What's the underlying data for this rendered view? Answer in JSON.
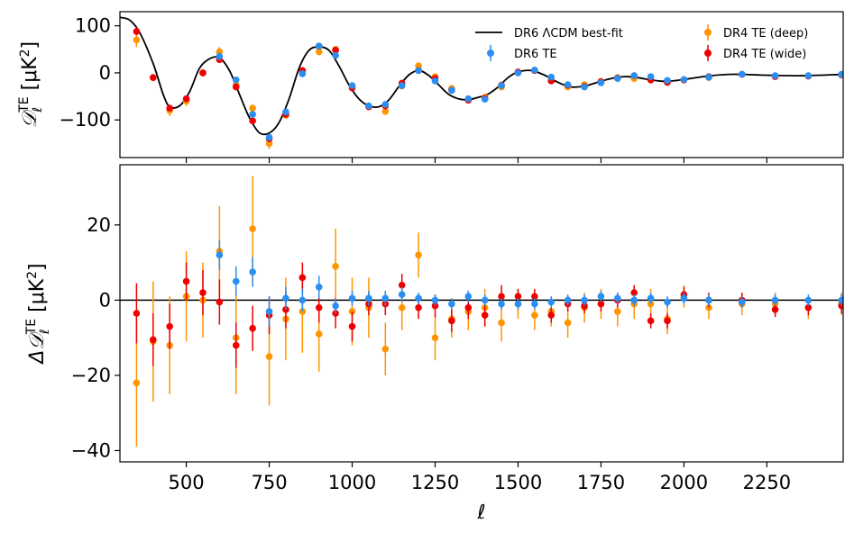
{
  "chart_data": [
    {
      "type": "scatter",
      "panel": "top",
      "ylabel": "D_ℓ^TE [μK²]",
      "ylabel_main": "𝒟",
      "ylabel_sub": "ℓ",
      "ylabel_sup": "TE",
      "ylabel_unit": " [μK",
      "ylabel_unit_sup": "2",
      "ylabel_close": "]",
      "xlim": [
        300,
        2480
      ],
      "ylim": [
        -180,
        130
      ],
      "yticks": [
        100,
        0,
        -100
      ],
      "ytick_labels": [
        "100",
        "0",
        "−100"
      ],
      "legend": {
        "position": "top-right",
        "entries": [
          {
            "label": "DR6 ΛCDM best-fit",
            "kind": "line",
            "color": "#000000"
          },
          {
            "label": "DR4 TE (deep)",
            "kind": "marker",
            "color": "#ff9500"
          },
          {
            "label": "DR6 TE",
            "kind": "marker",
            "color": "#2a8ff0"
          },
          {
            "label": "DR4 TE (wide)",
            "kind": "marker",
            "color": "#ee0000"
          }
        ]
      },
      "model_curve": {
        "name": "DR6 ΛCDM best-fit",
        "color": "#000000",
        "x": [
          300,
          330,
          360,
          400,
          430,
          450,
          480,
          510,
          540,
          570,
          600,
          630,
          660,
          690,
          720,
          750,
          780,
          810,
          840,
          870,
          900,
          930,
          960,
          990,
          1020,
          1050,
          1080,
          1110,
          1140,
          1170,
          1200,
          1230,
          1260,
          1290,
          1320,
          1350,
          1380,
          1410,
          1440,
          1470,
          1500,
          1540,
          1580,
          1620,
          1660,
          1700,
          1740,
          1780,
          1820,
          1860,
          1900,
          1940,
          1980,
          2020,
          2080,
          2150,
          2250,
          2350,
          2450,
          2480
        ],
        "y": [
          118,
          112,
          85,
          20,
          -45,
          -72,
          -70,
          -40,
          10,
          30,
          32,
          5,
          -45,
          -95,
          -127,
          -128,
          -105,
          -55,
          10,
          48,
          55,
          48,
          15,
          -25,
          -55,
          -70,
          -72,
          -58,
          -30,
          -5,
          5,
          -5,
          -25,
          -45,
          -55,
          -57,
          -52,
          -45,
          -30,
          -10,
          2,
          5,
          -5,
          -20,
          -30,
          -28,
          -20,
          -12,
          -8,
          -10,
          -15,
          -18,
          -16,
          -12,
          -6,
          -3,
          -5,
          -6,
          -4,
          -3
        ]
      },
      "series": [
        {
          "name": "DR4 TE (deep)",
          "color": "#ff9500",
          "x": [
            350,
            400,
            450,
            500,
            550,
            600,
            650,
            700,
            750,
            800,
            850,
            900,
            950,
            1000,
            1050,
            1100,
            1150,
            1200,
            1250,
            1300,
            1350,
            1400,
            1450,
            1500,
            1550,
            1600,
            1650,
            1700,
            1750,
            1800,
            1850,
            1900,
            1950,
            2000,
            2075,
            2175,
            2275,
            2375,
            2475
          ],
          "y": [
            70,
            -10,
            -80,
            -60,
            0,
            45,
            -25,
            -75,
            -150,
            -90,
            2,
            45,
            50,
            -30,
            -72,
            -82,
            -28,
            15,
            -8,
            -33,
            -58,
            -52,
            -30,
            0,
            5,
            -17,
            -30,
            -25,
            -18,
            -10,
            -12,
            -15,
            -20,
            -15,
            -10,
            -3,
            -7,
            -6,
            -4
          ],
          "yerr": [
            15,
            8,
            12,
            10,
            8,
            10,
            8,
            8,
            12,
            8,
            6,
            8,
            6,
            6,
            6,
            6,
            6,
            5,
            5,
            5,
            5,
            5,
            5,
            4,
            4,
            4,
            4,
            4,
            4,
            4,
            4,
            4,
            4,
            4,
            3,
            3,
            3,
            3,
            3
          ]
        },
        {
          "name": "DR4 TE (wide)",
          "color": "#ee0000",
          "x": [
            350,
            400,
            450,
            500,
            550,
            600,
            650,
            700,
            750,
            800,
            850,
            900,
            950,
            1000,
            1050,
            1100,
            1150,
            1200,
            1250,
            1300,
            1350,
            1400,
            1450,
            1500,
            1550,
            1600,
            1650,
            1700,
            1750,
            1800,
            1850,
            1900,
            1950,
            2000,
            2075,
            2175,
            2275,
            2375,
            2475
          ],
          "y": [
            88,
            -10,
            -75,
            -55,
            0,
            28,
            -30,
            -102,
            -140,
            -88,
            5,
            57,
            48,
            -32,
            -72,
            -70,
            -22,
            5,
            -12,
            -37,
            -58,
            -54,
            -26,
            2,
            5,
            -17,
            -26,
            -29,
            -19,
            -11,
            -6,
            -15,
            -20,
            -15,
            -8,
            -3,
            -8,
            -7,
            -4
          ],
          "yerr": [
            8,
            5,
            6,
            5,
            4,
            5,
            5,
            5,
            6,
            4,
            3,
            4,
            3,
            3,
            3,
            3,
            3,
            3,
            3,
            3,
            3,
            3,
            3,
            3,
            3,
            3,
            3,
            3,
            3,
            3,
            3,
            3,
            3,
            3,
            2,
            2,
            2,
            2,
            2
          ]
        },
        {
          "name": "DR6 TE",
          "color": "#2a8ff0",
          "x": [
            600,
            650,
            700,
            750,
            800,
            850,
            900,
            950,
            1000,
            1050,
            1100,
            1150,
            1200,
            1250,
            1300,
            1350,
            1400,
            1450,
            1500,
            1550,
            1600,
            1650,
            1700,
            1750,
            1800,
            1850,
            1900,
            1950,
            2000,
            2075,
            2175,
            2275,
            2375,
            2475
          ],
          "y": [
            35,
            -15,
            -88,
            -137,
            -83,
            -2,
            57,
            37,
            -27,
            -70,
            -67,
            -27,
            5,
            -17,
            -37,
            -55,
            -56,
            -27,
            0,
            6,
            -9,
            -25,
            -30,
            -21,
            -12,
            -6,
            -8,
            -16,
            -14,
            -9,
            -3,
            -6,
            -6,
            -3
          ],
          "yerr": [
            8,
            6,
            6,
            6,
            4,
            3,
            3,
            3,
            3,
            3,
            3,
            2,
            2,
            2,
            2,
            2,
            2,
            2,
            2,
            2,
            2,
            2,
            2,
            2,
            2,
            2,
            2,
            2,
            2,
            2,
            2,
            2,
            2,
            2
          ]
        }
      ]
    },
    {
      "type": "scatter",
      "panel": "bottom",
      "xlabel": "ℓ",
      "ylabel": "ΔD_ℓ^TE [μK²]",
      "ylabel_main": "Δ𝒟",
      "ylabel_sub": "ℓ",
      "ylabel_sup": "TE",
      "ylabel_unit": " [μK",
      "ylabel_unit_sup": "2",
      "ylabel_close": "]",
      "xlim": [
        300,
        2480
      ],
      "ylim": [
        -43,
        36
      ],
      "xticks": [
        500,
        750,
        1000,
        1250,
        1500,
        1750,
        2000,
        2250
      ],
      "xtick_labels": [
        "500",
        "750",
        "1000",
        "1250",
        "1500",
        "1750",
        "2000",
        "2250"
      ],
      "yticks": [
        20,
        0,
        -20,
        -40
      ],
      "ytick_labels": [
        "20",
        "0",
        "−20",
        "−40"
      ],
      "zero_line": 0,
      "series": [
        {
          "name": "DR4 TE (deep)",
          "color": "#ff9500",
          "x": [
            350,
            400,
            450,
            500,
            550,
            600,
            650,
            700,
            750,
            800,
            850,
            900,
            950,
            1000,
            1050,
            1100,
            1150,
            1200,
            1250,
            1300,
            1350,
            1400,
            1450,
            1500,
            1550,
            1600,
            1650,
            1700,
            1750,
            1800,
            1850,
            1900,
            1950,
            2000,
            2075,
            2175,
            2275,
            2375,
            2475
          ],
          "y": [
            -22,
            -11,
            -12,
            1,
            0,
            13,
            -10,
            19,
            -15,
            -5,
            -3,
            -9,
            9,
            -3,
            -2,
            -13,
            -2,
            12,
            -10,
            -5,
            -3,
            -2,
            -6,
            -1,
            -4,
            -3,
            -6,
            -2,
            -1,
            -3,
            -1,
            -1,
            -5,
            1,
            -2,
            -1,
            -1,
            -2,
            -1
          ],
          "yerr": [
            17,
            16,
            13,
            12,
            10,
            12,
            15,
            14,
            13,
            11,
            11,
            10,
            10,
            9,
            8,
            7,
            6,
            6,
            6,
            5,
            5,
            5,
            5,
            4,
            4,
            4,
            4,
            4,
            4,
            4,
            4,
            4,
            4,
            3,
            3,
            3,
            3,
            3,
            3
          ]
        },
        {
          "name": "DR4 TE (wide)",
          "color": "#ee0000",
          "x": [
            350,
            400,
            450,
            500,
            550,
            600,
            650,
            700,
            750,
            800,
            850,
            900,
            950,
            1000,
            1050,
            1100,
            1150,
            1200,
            1250,
            1300,
            1350,
            1400,
            1450,
            1500,
            1550,
            1600,
            1650,
            1700,
            1750,
            1800,
            1850,
            1900,
            1950,
            2000,
            2075,
            2175,
            2275,
            2375,
            2475
          ],
          "y": [
            -3.5,
            -10.5,
            -7,
            5,
            2,
            -0.5,
            -12,
            -7.5,
            -4,
            -2.5,
            6,
            -2,
            -3.5,
            -7,
            -1,
            -1,
            4,
            -2,
            -1.5,
            -5.5,
            -2,
            -4,
            1,
            1,
            1,
            -4,
            -1,
            -1.5,
            -1,
            0,
            2,
            -5.5,
            -5.5,
            1.5,
            0,
            0,
            -2.5,
            -2,
            -1.5
          ],
          "yerr": [
            8,
            7,
            6,
            5,
            6,
            6,
            6,
            6,
            5,
            5,
            4,
            4,
            4,
            4,
            3,
            3,
            3,
            3,
            3,
            3,
            3,
            3,
            3,
            2,
            2,
            2,
            2,
            2,
            2,
            2,
            2,
            2,
            2,
            2,
            2,
            2,
            2,
            2,
            2
          ]
        },
        {
          "name": "DR6 TE",
          "color": "#2a8ff0",
          "x": [
            600,
            650,
            700,
            750,
            800,
            850,
            900,
            950,
            1000,
            1050,
            1100,
            1150,
            1200,
            1250,
            1300,
            1350,
            1400,
            1450,
            1500,
            1550,
            1600,
            1650,
            1700,
            1750,
            1800,
            1850,
            1900,
            1950,
            2000,
            2075,
            2175,
            2275,
            2375,
            2475
          ],
          "y": [
            12,
            5,
            7.5,
            -3,
            0.5,
            0,
            3.5,
            -1.5,
            0.5,
            0.5,
            0.5,
            1.5,
            0.5,
            0,
            -1,
            1,
            0,
            -1,
            -1,
            -1,
            -0.5,
            0,
            0,
            1,
            0.5,
            0,
            0.5,
            -0.5,
            0.5,
            0,
            -0.5,
            0,
            0,
            0
          ],
          "yerr": [
            4,
            4,
            4,
            4,
            3,
            3,
            3,
            2,
            2,
            2,
            2,
            2,
            1.5,
            1.5,
            1.5,
            1.5,
            1.5,
            1.5,
            1.5,
            1.5,
            1.5,
            1.5,
            1.5,
            1.5,
            1.5,
            1.5,
            1.5,
            1.5,
            1.5,
            1.5,
            1.5,
            1.5,
            1.5,
            1.5
          ]
        }
      ]
    }
  ]
}
